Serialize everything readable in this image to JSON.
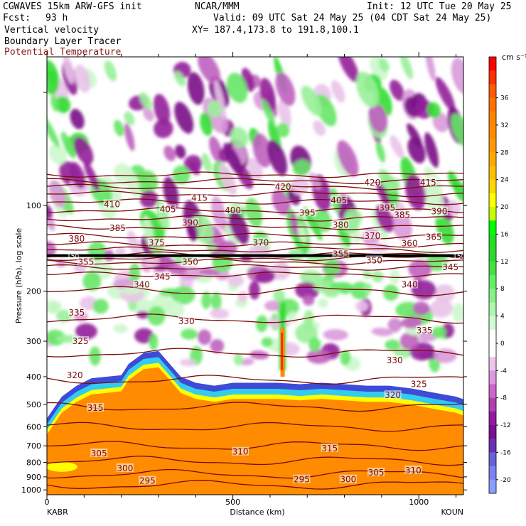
{
  "header": {
    "model": "CGWAVES 15km ARW-GFS init",
    "org": "NCAR/MMM",
    "init": "Init: 12 UTC Tue 20 May 25",
    "fcst_label": "Fcst:",
    "fcst_value": "93 h",
    "valid": "Valid: 09 UTC Sat 24 May 25 (04 CDT Sat 24 May 25)",
    "field1": "Vertical velocity",
    "field2": "Boundary Layer Tracer",
    "field3": "Potential Temperature",
    "xy": "XY= 187.4,173.8 to 191.8,100.1"
  },
  "colors": {
    "theta": "#7a0b0b",
    "bl_tracer": "#ff8c00"
  },
  "chart_data": {
    "type": "heatmap",
    "title": "",
    "xlabel": "Distance (km)",
    "ylabel": "Pressure (hPa), log scale",
    "x_ticks": [
      0,
      500,
      1000
    ],
    "xlim": [
      0,
      1120
    ],
    "y_ticks": [
      100,
      200,
      300,
      400,
      500,
      600,
      700,
      800,
      900,
      1000
    ],
    "ylim": [
      30,
      1040
    ],
    "y_scale": "log",
    "x_left_label": "KABR",
    "x_right_label": "KOUN",
    "colorbar": {
      "units": "cm s⁻¹",
      "tick_labels": [
        "36",
        "32",
        "28",
        "24",
        "20",
        "16",
        "12",
        "8",
        "4",
        "0",
        "-4",
        "-8",
        "-12",
        "-16",
        "-20"
      ],
      "levels": [
        40,
        38,
        36,
        34,
        32,
        30,
        28,
        26,
        24,
        22,
        20,
        18,
        16,
        14,
        12,
        10,
        8,
        6,
        4,
        2,
        0,
        -2,
        -4,
        -6,
        -8,
        -10,
        -12,
        -14,
        -16,
        -18,
        -20,
        -22
      ],
      "colors": [
        "#ff0000",
        "#ff3000",
        "#ff5a00",
        "#ff7200",
        "#ff8400",
        "#ff8c00",
        "#ff9a00",
        "#ffaa00",
        "#ffc000",
        "#ffd800",
        "#ffff00",
        "#c8ff00",
        "#00ff00",
        "#20e020",
        "#2ed82e",
        "#44e044",
        "#66ec66",
        "#88f288",
        "#aef6ae",
        "#d2fad2",
        "#ffffff",
        "#ffffff",
        "#ecc6ec",
        "#dd99dd",
        "#cc66cc",
        "#b13fb1",
        "#9418a0",
        "#7a1090",
        "#6a30b0",
        "#6a60d8",
        "#7a82f2",
        "#8aa0ff"
      ]
    },
    "theta_contours": [
      {
        "value": 295,
        "p": 960
      },
      {
        "value": 300,
        "p": 880
      },
      {
        "value": 305,
        "p": 790
      },
      {
        "value": 310,
        "p": 700
      },
      {
        "value": 315,
        "p": 600
      },
      {
        "value": 320,
        "p": 510
      },
      {
        "value": 325,
        "p": 410
      },
      {
        "value": 330,
        "p": 330
      },
      {
        "value": 335,
        "p": 250
      },
      {
        "value": 340,
        "p": 200
      },
      {
        "value": 345,
        "p": 175
      },
      {
        "value": 350,
        "p": 165
      },
      {
        "value": 355,
        "p": 158
      },
      {
        "value": 360,
        "p": 153
      },
      {
        "value": 365,
        "p": 149
      },
      {
        "value": 370,
        "p": 143
      },
      {
        "value": 375,
        "p": 137
      },
      {
        "value": 380,
        "p": 128
      },
      {
        "value": 385,
        "p": 119
      },
      {
        "value": 390,
        "p": 111
      },
      {
        "value": 395,
        "p": 104
      },
      {
        "value": 400,
        "p": 97
      },
      {
        "value": 405,
        "p": 91
      },
      {
        "value": 410,
        "p": 86
      },
      {
        "value": 415,
        "p": 82
      },
      {
        "value": 420,
        "p": 78
      }
    ],
    "theta_labels": [
      {
        "value": "295",
        "x": 270,
        "p": 930
      },
      {
        "value": "295",
        "x": 685,
        "p": 920
      },
      {
        "value": "300",
        "x": 210,
        "p": 840
      },
      {
        "value": "300",
        "x": 810,
        "p": 920
      },
      {
        "value": "305",
        "x": 140,
        "p": 745
      },
      {
        "value": "305",
        "x": 885,
        "p": 870
      },
      {
        "value": "310",
        "x": 520,
        "p": 735
      },
      {
        "value": "310",
        "x": 985,
        "p": 855
      },
      {
        "value": "315",
        "x": 760,
        "p": 715
      },
      {
        "value": "315",
        "x": 130,
        "p": 515
      },
      {
        "value": "320",
        "x": 75,
        "p": 395
      },
      {
        "value": "320",
        "x": 930,
        "p": 465
      },
      {
        "value": "325",
        "x": 90,
        "p": 300
      },
      {
        "value": "325",
        "x": 1000,
        "p": 425
      },
      {
        "value": "330",
        "x": 375,
        "p": 255
      },
      {
        "value": "330",
        "x": 935,
        "p": 350
      },
      {
        "value": "335",
        "x": 80,
        "p": 238
      },
      {
        "value": "335",
        "x": 1015,
        "p": 275
      },
      {
        "value": "340",
        "x": 255,
        "p": 190
      },
      {
        "value": "340",
        "x": 975,
        "p": 190
      },
      {
        "value": "345",
        "x": 310,
        "p": 178
      },
      {
        "value": "345",
        "x": 1085,
        "p": 165
      },
      {
        "value": "350",
        "x": 385,
        "p": 158
      },
      {
        "value": "350",
        "x": 880,
        "p": 156
      },
      {
        "value": "355",
        "x": 105,
        "p": 158
      },
      {
        "value": "355",
        "x": 790,
        "p": 148
      },
      {
        "value": "360",
        "x": 975,
        "p": 136
      },
      {
        "value": "365",
        "x": 1040,
        "p": 129
      },
      {
        "value": "370",
        "x": 575,
        "p": 135
      },
      {
        "value": "370",
        "x": 875,
        "p": 128
      },
      {
        "value": "375",
        "x": 295,
        "p": 135
      },
      {
        "value": "380",
        "x": 80,
        "p": 131
      },
      {
        "value": "380",
        "x": 790,
        "p": 117
      },
      {
        "value": "385",
        "x": 190,
        "p": 120
      },
      {
        "value": "385",
        "x": 955,
        "p": 108
      },
      {
        "value": "390",
        "x": 385,
        "p": 115
      },
      {
        "value": "390",
        "x": 1055,
        "p": 105
      },
      {
        "value": "395",
        "x": 700,
        "p": 106
      },
      {
        "value": "395",
        "x": 915,
        "p": 102
      },
      {
        "value": "400",
        "x": 500,
        "p": 104
      },
      {
        "value": "405",
        "x": 325,
        "p": 103
      },
      {
        "value": "405",
        "x": 785,
        "p": 96
      },
      {
        "value": "410",
        "x": 175,
        "p": 99
      },
      {
        "value": "415",
        "x": 410,
        "p": 94
      },
      {
        "value": "415",
        "x": 1025,
        "p": 83
      },
      {
        "value": "420",
        "x": 635,
        "p": 86
      },
      {
        "value": "420",
        "x": 875,
        "p": 83
      }
    ],
    "tropopause_thick_line": {
      "p": 150,
      "label": "150"
    }
  }
}
